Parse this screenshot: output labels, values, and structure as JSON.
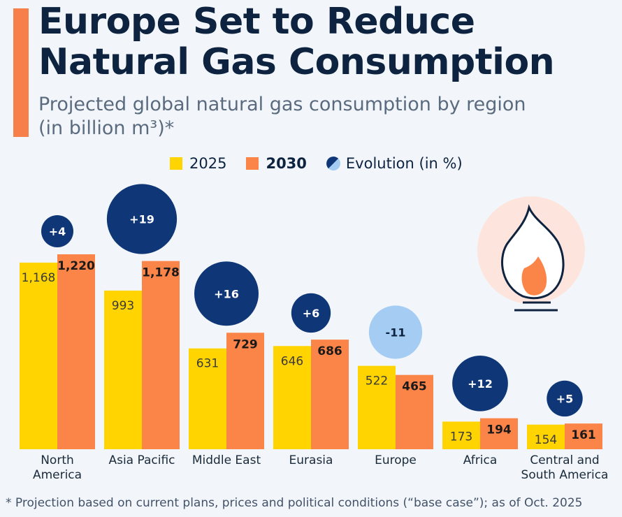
{
  "title_line1": "Europe Set to Reduce",
  "title_line2": "Natural Gas Consumption",
  "subtitle_line1": "Projected global natural gas consumption by region",
  "subtitle_line2": "(in billion m³)*",
  "footnote": "* Projection based on current plans, prices and political conditions (“base case”); as of Oct. 2025",
  "icon": "gas-flame-icon",
  "colors": {
    "y2025": "#ffd400",
    "y2030": "#fb8449",
    "circle_positive": "#0f3778",
    "circle_negative": "#a5cdf4",
    "flame_bg": "#fde4dc"
  },
  "chart_data": {
    "type": "bar",
    "categories": [
      "North America",
      "Asia Pacific",
      "Middle East",
      "Eurasia",
      "Europe",
      "Africa",
      "Central and South America"
    ],
    "series": [
      {
        "name": "2025",
        "values": [
          1168,
          993,
          631,
          646,
          522,
          173,
          154
        ]
      },
      {
        "name": "2030",
        "values": [
          1220,
          1178,
          729,
          686,
          465,
          194,
          161
        ]
      }
    ],
    "evolution": {
      "name": "Evolution (in %)",
      "values": [
        4,
        19,
        16,
        6,
        -11,
        12,
        5
      ]
    },
    "value_labels_2025": [
      "1,168",
      "993",
      "631",
      "646",
      "522",
      "173",
      "154"
    ],
    "value_labels_2030": [
      "1,220",
      "1,178",
      "729",
      "686",
      "465",
      "194",
      "161"
    ],
    "evolution_labels": [
      "+4",
      "+19",
      "+16",
      "+6",
      "-11",
      "+12",
      "+5"
    ],
    "category_lines": [
      [
        "North",
        "America"
      ],
      [
        "Asia Pacific"
      ],
      [
        "Middle East"
      ],
      [
        "Eurasia"
      ],
      [
        "Europe"
      ],
      [
        "Africa"
      ],
      [
        "Central and",
        "South America"
      ]
    ],
    "legend": {
      "y2025": "2025",
      "y2030": "2030",
      "evolution": "Evolution (in %)"
    },
    "legend_placement": "top",
    "grid": false
  }
}
